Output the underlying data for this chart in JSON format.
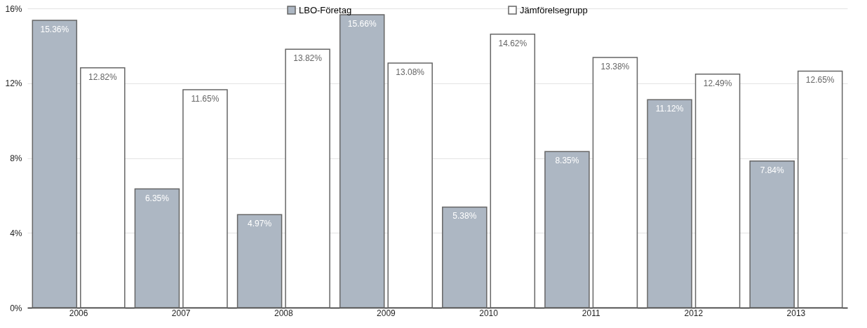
{
  "chart_data": {
    "type": "bar",
    "categories": [
      "2006",
      "2007",
      "2008",
      "2009",
      "2010",
      "2011",
      "2012",
      "2013"
    ],
    "series": [
      {
        "name": "LBO-Företag",
        "color": "#adb7c3",
        "values": [
          15.36,
          6.35,
          4.97,
          15.66,
          5.38,
          8.35,
          11.12,
          7.84
        ],
        "value_labels": [
          "15.36%",
          "6.35%",
          "4.97%",
          "15.66%",
          "5.38%",
          "8.35%",
          "11.12%",
          "7.84%"
        ]
      },
      {
        "name": "Jämförelsegrupp",
        "color": "#ffffff",
        "values": [
          12.82,
          11.65,
          13.82,
          13.08,
          14.62,
          13.38,
          12.49,
          12.65
        ],
        "value_labels": [
          "12.82%",
          "11.65%",
          "13.82%",
          "13.08%",
          "14.62%",
          "13.38%",
          "12.49%",
          "12.65%"
        ]
      }
    ],
    "ylim": [
      0,
      16
    ],
    "yticks": [
      {
        "value": 0,
        "label": "0%"
      },
      {
        "value": 4,
        "label": "4%"
      },
      {
        "value": 8,
        "label": "8%"
      },
      {
        "value": 12,
        "label": "12%"
      },
      {
        "value": 16,
        "label": "16%"
      }
    ],
    "grid": "y",
    "legend": "top"
  }
}
